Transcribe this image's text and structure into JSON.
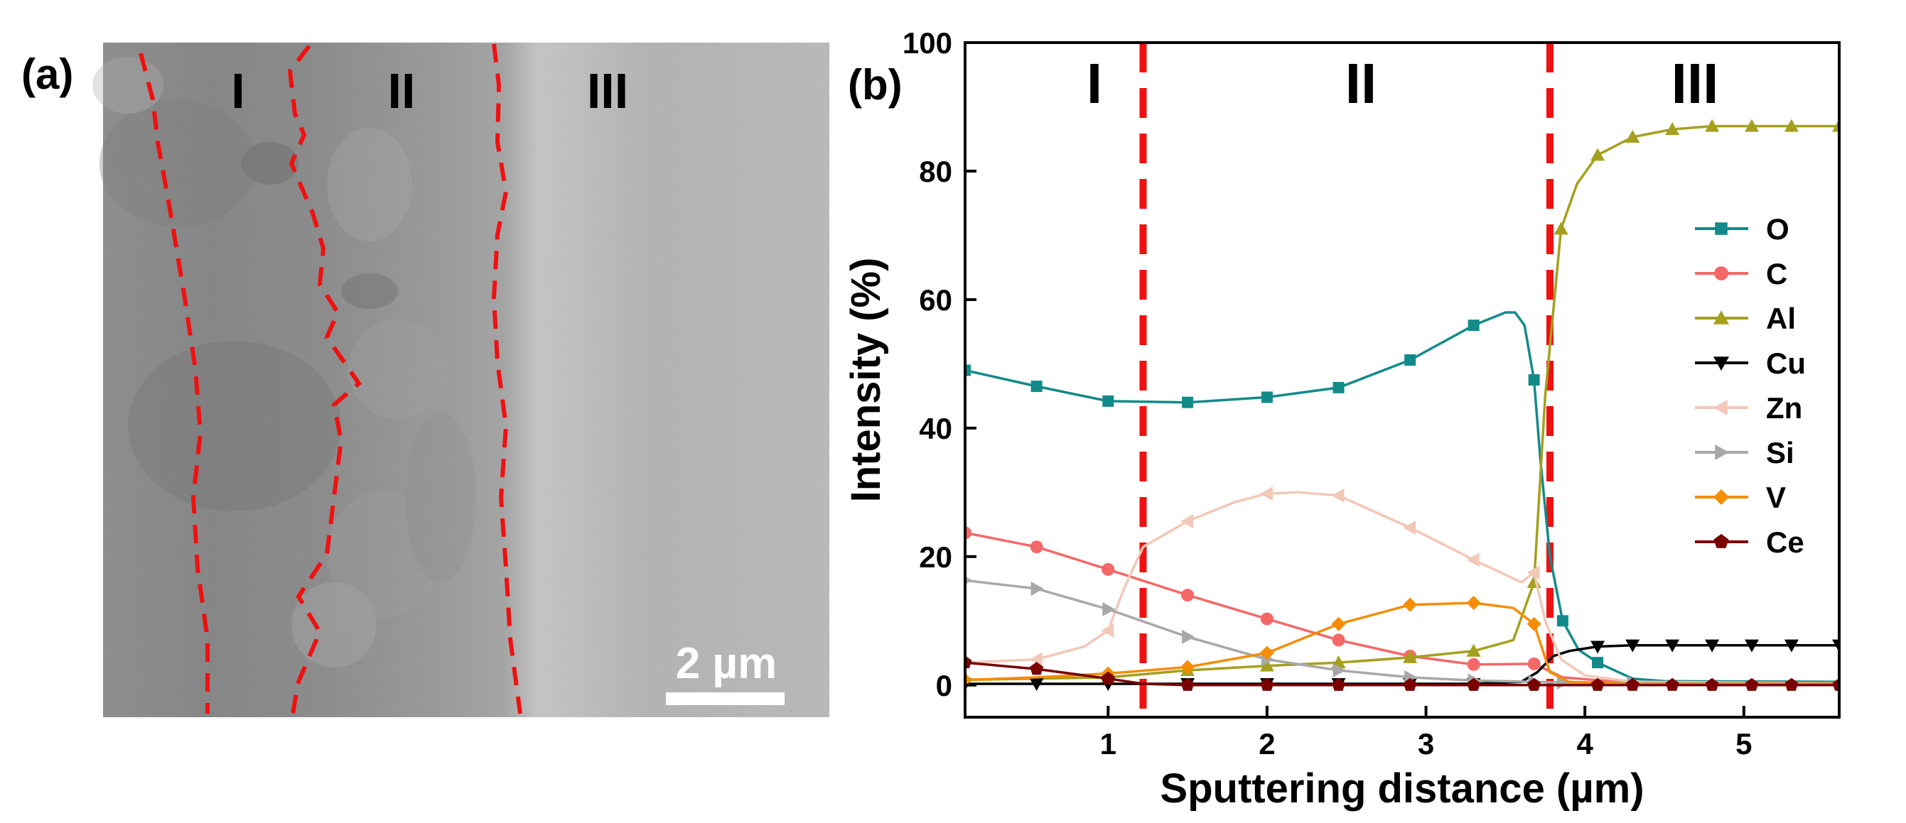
{
  "panel_a": {
    "label": "(a)",
    "regions": [
      "I",
      "II",
      "III"
    ],
    "scale_bar": "2 µm"
  },
  "panel_b": {
    "label": "(b)",
    "regions": [
      "I",
      "II",
      "III"
    ]
  },
  "colors": {
    "O": "#138a8a",
    "C": "#f46868",
    "Al": "#a5a01e",
    "Cu": "#000000",
    "Zn": "#f2c8b8",
    "Si": "#a8a8a8",
    "V": "#f58d05",
    "Ce": "#7a0000",
    "boundary": "#ee1111"
  },
  "chart_data": {
    "type": "line",
    "title": "",
    "xlabel": "Sputtering distance (µm)",
    "ylabel": "Intensity (%)",
    "xlim": [
      0.1,
      5.6
    ],
    "ylim": [
      -5,
      100
    ],
    "xticks": [
      1,
      2,
      3,
      4,
      5
    ],
    "yticks": [
      0,
      20,
      40,
      60,
      80,
      100
    ],
    "region_boundaries": [
      1.22,
      3.78
    ],
    "legend_position": "right",
    "series": [
      {
        "name": "O",
        "marker": "square",
        "x": [
          0.1,
          0.55,
          1.0,
          1.5,
          2.0,
          2.45,
          2.9,
          3.3,
          3.5,
          3.56,
          3.62,
          3.68,
          3.72,
          3.78,
          3.86,
          3.96,
          4.08,
          4.3,
          4.5,
          5.6
        ],
        "y": [
          49,
          46.5,
          44.2,
          44,
          44.8,
          46.3,
          50.6,
          56,
          58,
          58,
          56,
          47.5,
          35,
          20,
          10,
          5.5,
          3.5,
          1,
          0.6,
          0.5
        ],
        "marker_x": [
          0.1,
          0.55,
          1.0,
          1.5,
          2.0,
          2.45,
          2.9,
          3.3,
          3.68,
          3.86,
          4.08
        ]
      },
      {
        "name": "C",
        "marker": "circle",
        "x": [
          0.1,
          0.55,
          1.0,
          1.5,
          2.0,
          2.45,
          2.9,
          3.3,
          3.68,
          3.86,
          4.3,
          5.6
        ],
        "y": [
          23.7,
          21.5,
          18,
          14,
          10.3,
          7,
          4.5,
          3.2,
          3.3,
          1.2,
          0.3,
          0.2
        ],
        "marker_x": [
          0.1,
          0.55,
          1.0,
          1.5,
          2.0,
          2.45,
          2.9,
          3.3,
          3.68
        ]
      },
      {
        "name": "Al",
        "marker": "triangle-up",
        "x": [
          0.1,
          1.0,
          1.5,
          2.0,
          2.45,
          2.9,
          3.3,
          3.55,
          3.68,
          3.75,
          3.85,
          3.95,
          4.08,
          4.3,
          4.55,
          4.8,
          5.05,
          5.3,
          5.6
        ],
        "y": [
          0.8,
          1.2,
          2.3,
          3,
          3.5,
          4.3,
          5.3,
          7,
          16,
          45,
          71,
          78,
          82.5,
          85.3,
          86.5,
          87,
          87,
          87,
          87
        ],
        "marker_x": [
          0.1,
          1.0,
          1.5,
          2.0,
          2.45,
          2.9,
          3.3,
          3.68,
          3.85,
          4.08,
          4.3,
          4.55,
          4.8,
          5.05,
          5.3,
          5.6
        ]
      },
      {
        "name": "Cu",
        "marker": "triangle-down",
        "x": [
          0.1,
          0.55,
          1.0,
          1.5,
          2.0,
          2.45,
          2.9,
          3.3,
          3.6,
          3.7,
          3.8,
          3.9,
          4.08,
          4.3,
          5.6
        ],
        "y": [
          0.2,
          0.2,
          0.2,
          0.2,
          0.2,
          0.2,
          0.2,
          0.2,
          0.5,
          2,
          4.5,
          5.3,
          6,
          6.2,
          6.2
        ],
        "marker_x": [
          0.1,
          0.55,
          1.0,
          1.5,
          2.0,
          2.45,
          2.9,
          3.3,
          4.08,
          4.3,
          4.55,
          4.8,
          5.05,
          5.3,
          5.6
        ]
      },
      {
        "name": "Zn",
        "marker": "triangle-left",
        "x": [
          0.1,
          0.55,
          0.85,
          1.0,
          1.1,
          1.22,
          1.5,
          1.8,
          2.0,
          2.2,
          2.45,
          2.9,
          3.3,
          3.6,
          3.68,
          3.75,
          3.85,
          4.0,
          4.3,
          5.6
        ],
        "y": [
          3.5,
          4,
          6,
          8.5,
          15,
          21.5,
          25.5,
          28.5,
          29.8,
          30,
          29.5,
          24.5,
          19.5,
          16,
          17.5,
          10,
          4,
          1.5,
          0.5,
          0.3
        ],
        "marker_x": [
          0.55,
          1.0,
          1.5,
          2.0,
          2.45,
          2.9,
          3.3,
          3.68
        ]
      },
      {
        "name": "Si",
        "marker": "triangle-right",
        "x": [
          0.1,
          0.55,
          1.0,
          1.5,
          2.0,
          2.45,
          2.9,
          3.3,
          3.68,
          3.86,
          4.3,
          5.6
        ],
        "y": [
          16.3,
          15,
          11.8,
          7.5,
          4,
          2.3,
          1.2,
          0.7,
          0.5,
          0.4,
          0.3,
          0.3
        ],
        "marker_x": [
          0.1,
          0.55,
          1.0,
          1.5,
          2.0,
          2.45,
          2.9,
          3.3,
          3.68,
          3.86,
          4.3
        ]
      },
      {
        "name": "V",
        "marker": "diamond",
        "x": [
          0.1,
          0.55,
          1.0,
          1.5,
          2.0,
          2.45,
          2.9,
          3.3,
          3.55,
          3.68,
          3.78,
          3.9,
          4.3,
          5.6
        ],
        "y": [
          0.8,
          1.2,
          1.8,
          2.8,
          5,
          9.5,
          12.5,
          12.8,
          12,
          9.5,
          2,
          0.5,
          0.2,
          0.2
        ],
        "marker_x": [
          0.1,
          1.0,
          1.5,
          2.0,
          2.45,
          2.9,
          3.3,
          3.68
        ]
      },
      {
        "name": "Ce",
        "marker": "pentagon",
        "x": [
          0.1,
          0.55,
          1.0,
          1.22,
          1.5,
          2.0,
          5.6
        ],
        "y": [
          3.5,
          2.5,
          1,
          0.2,
          0,
          0,
          0
        ],
        "marker_x": [
          0.1,
          0.55,
          1.0,
          1.5,
          2.0,
          2.45,
          2.9,
          3.3,
          3.68,
          4.08,
          4.3,
          4.55,
          4.8,
          5.05,
          5.3,
          5.6
        ]
      }
    ]
  }
}
